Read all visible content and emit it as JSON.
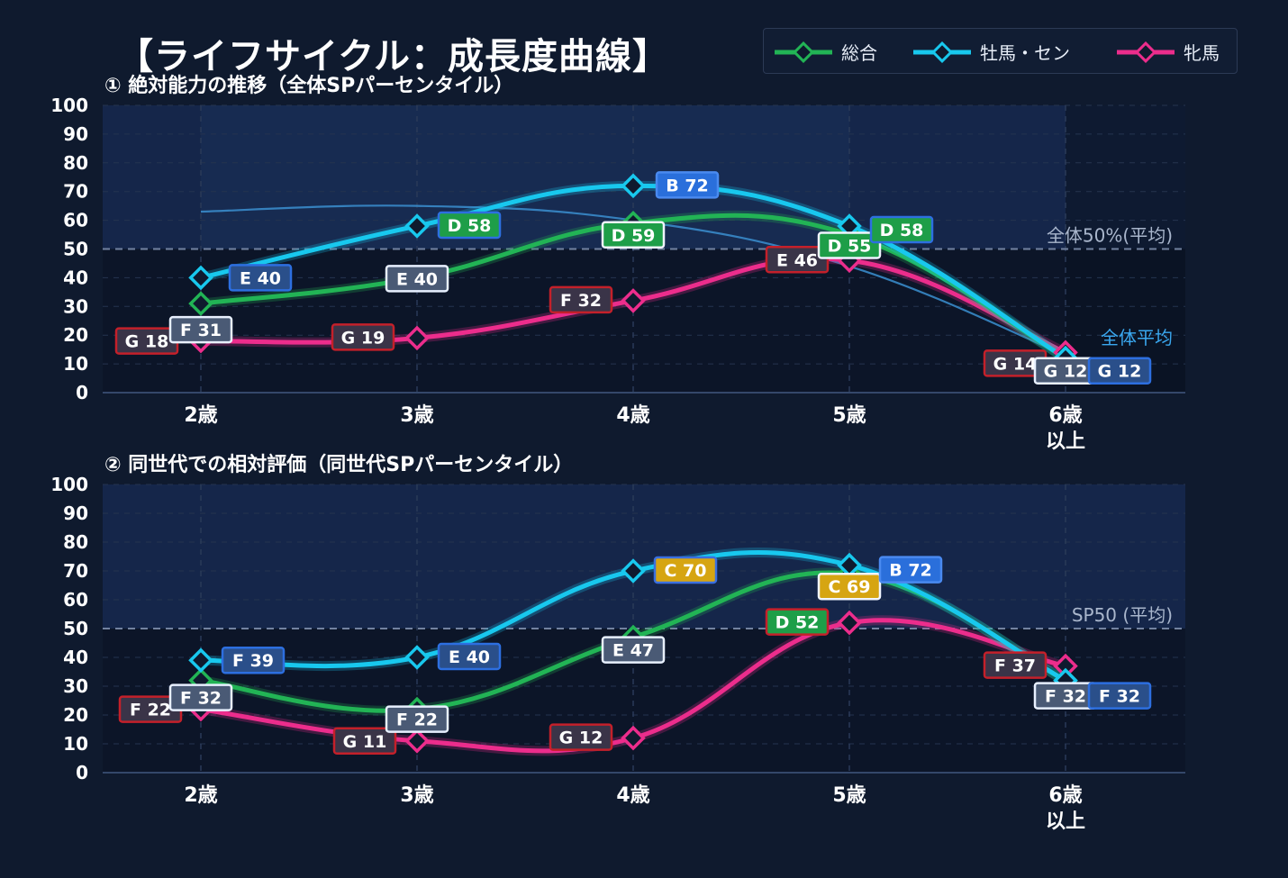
{
  "title": "【ライフサイクル：成長度曲線】",
  "legend": [
    {
      "label": "総合",
      "color": "#22b455"
    },
    {
      "label": "牡馬・セン",
      "color": "#18c8ee"
    },
    {
      "label": "牝馬",
      "color": "#ec2d8c"
    }
  ],
  "chart_data": [
    {
      "type": "line",
      "title": "① 絶対能力の推移（全体SPパーセンタイル）",
      "categories": [
        "2歳",
        "3歳",
        "4歳",
        "5歳",
        "6歳\n以上"
      ],
      "ylim": [
        0,
        100
      ],
      "yticks": [
        0,
        10,
        20,
        30,
        40,
        50,
        60,
        70,
        80,
        90,
        100
      ],
      "reference_line": {
        "value": 50,
        "label": "全体50%(平均)"
      },
      "average_curve": {
        "label": "全体平均",
        "values": [
          63,
          65,
          60,
          44,
          13
        ]
      },
      "series": [
        {
          "name": "総合",
          "values": [
            31,
            40,
            59,
            55,
            12
          ],
          "labels": [
            "F 31",
            "E 40",
            "D 59",
            "D 55",
            "G 12"
          ]
        },
        {
          "name": "牡馬・セン",
          "values": [
            40,
            58,
            72,
            58,
            12
          ],
          "labels": [
            "E 40",
            "D 58",
            "B 72",
            "D 58",
            "G 12"
          ]
        },
        {
          "name": "牝馬",
          "values": [
            18,
            19,
            32,
            46,
            14
          ],
          "labels": [
            "G 18",
            "G 19",
            "F 32",
            "E 46",
            "G 14"
          ]
        }
      ],
      "grid": true
    },
    {
      "type": "line",
      "title": "② 同世代での相対評価（同世代SPパーセンタイル）",
      "categories": [
        "2歳",
        "3歳",
        "4歳",
        "5歳",
        "6歳\n以上"
      ],
      "ylim": [
        0,
        100
      ],
      "yticks": [
        0,
        10,
        20,
        30,
        40,
        50,
        60,
        70,
        80,
        90,
        100
      ],
      "reference_line": {
        "value": 50,
        "label": "SP50 (平均)"
      },
      "series": [
        {
          "name": "総合",
          "values": [
            32,
            22,
            47,
            69,
            32
          ],
          "labels": [
            "F 32",
            "F 22",
            "E 47",
            "C 69",
            "F 32"
          ]
        },
        {
          "name": "牡馬・セン",
          "values": [
            39,
            40,
            70,
            72,
            32
          ],
          "labels": [
            "F 39",
            "E 40",
            "C 70",
            "B 72",
            "F 32"
          ]
        },
        {
          "name": "牝馬",
          "values": [
            22,
            11,
            12,
            52,
            37
          ],
          "labels": [
            "F 22",
            "G 11",
            "G 12",
            "D 52",
            "F 37"
          ]
        }
      ],
      "grid": true
    }
  ]
}
